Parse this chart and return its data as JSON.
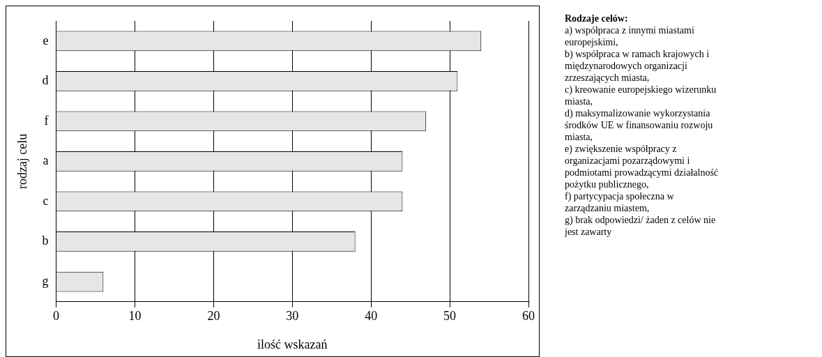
{
  "chart_data": {
    "type": "bar",
    "orientation": "horizontal",
    "categories": [
      "e",
      "d",
      "f",
      "a",
      "c",
      "b",
      "g"
    ],
    "values": [
      54,
      51,
      47,
      44,
      44,
      38,
      6
    ],
    "color": "#e6e6e6",
    "xlim": [
      0,
      60
    ],
    "xticks": [
      0,
      10,
      20,
      30,
      40,
      50,
      60
    ],
    "xlabel": "ilość wskazań",
    "ylabel": "rodzaj celu",
    "grid": "x",
    "legend": false,
    "annotations": [
      "Rodzaje celów:",
      "a) współpraca z innymi miastami europejskimi,",
      "b) współpraca w ramach krajowych i międzynarodowych organizacji zrzeszających miasta,",
      "c) kreowanie europejskiego wizerunku miasta,",
      "d) maksymalizowanie wykorzystania środków UE w finansowaniu rozwoju miasta,",
      "e) zwiększenie współpracy z organizacjami pozarządowymi i podmiotami prowadzącymi działalność pożytku publicznego,",
      "f) partycypacja społeczna w zarządzaniu miastem,",
      "g) brak odpowiedzi/ żaden z celów nie jest zawarty"
    ]
  }
}
